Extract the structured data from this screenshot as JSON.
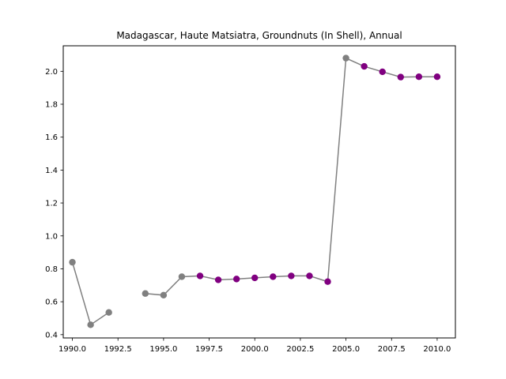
{
  "chart_data": {
    "type": "line",
    "title": "Madagascar, Haute Matsiatra, Groundnuts (In Shell), Annual",
    "xlabel": "",
    "ylabel": "",
    "xlim": [
      1989.5,
      2011.0
    ],
    "ylim": [
      0.38,
      2.155
    ],
    "x_ticks": [
      1990.0,
      1992.5,
      1995.0,
      1997.5,
      2000.0,
      2002.5,
      2005.0,
      2007.5,
      2010.0
    ],
    "x_tick_labels": [
      "1990.0",
      "1992.5",
      "1995.0",
      "1997.5",
      "2000.0",
      "2002.5",
      "2005.0",
      "2007.5",
      "2010.0"
    ],
    "y_ticks": [
      0.4,
      0.6,
      0.8,
      1.0,
      1.2,
      1.4,
      1.6,
      1.8,
      2.0
    ],
    "y_tick_labels": [
      "0.4",
      "0.6",
      "0.8",
      "1.0",
      "1.2",
      "1.4",
      "1.6",
      "1.8",
      "2.0"
    ],
    "grid": false,
    "line_color": "#808080",
    "colors": {
      "gray": "#808080",
      "purple": "#800080"
    },
    "series": [
      {
        "points": [
          {
            "x": 1990,
            "y": 0.84,
            "color": "gray"
          },
          {
            "x": 1991,
            "y": 0.46,
            "color": "gray"
          },
          {
            "x": 1992,
            "y": 0.535,
            "color": "gray"
          },
          {
            "x": 1993,
            "y": null,
            "color": "gray"
          },
          {
            "x": 1994,
            "y": 0.65,
            "color": "gray"
          },
          {
            "x": 1995,
            "y": 0.64,
            "color": "gray"
          },
          {
            "x": 1996,
            "y": 0.752,
            "color": "gray"
          },
          {
            "x": 1997,
            "y": 0.757,
            "color": "purple"
          },
          {
            "x": 1998,
            "y": 0.733,
            "color": "purple"
          },
          {
            "x": 1999,
            "y": 0.738,
            "color": "purple"
          },
          {
            "x": 2000,
            "y": 0.745,
            "color": "purple"
          },
          {
            "x": 2001,
            "y": 0.752,
            "color": "purple"
          },
          {
            "x": 2002,
            "y": 0.757,
            "color": "purple"
          },
          {
            "x": 2003,
            "y": 0.757,
            "color": "purple"
          },
          {
            "x": 2004,
            "y": 0.722,
            "color": "purple"
          },
          {
            "x": 2005,
            "y": 2.08,
            "color": "gray"
          },
          {
            "x": 2006,
            "y": 2.03,
            "color": "purple"
          },
          {
            "x": 2007,
            "y": 1.997,
            "color": "purple"
          },
          {
            "x": 2008,
            "y": 1.965,
            "color": "purple"
          },
          {
            "x": 2009,
            "y": 1.967,
            "color": "purple"
          },
          {
            "x": 2010,
            "y": 1.967,
            "color": "purple"
          }
        ]
      }
    ]
  }
}
